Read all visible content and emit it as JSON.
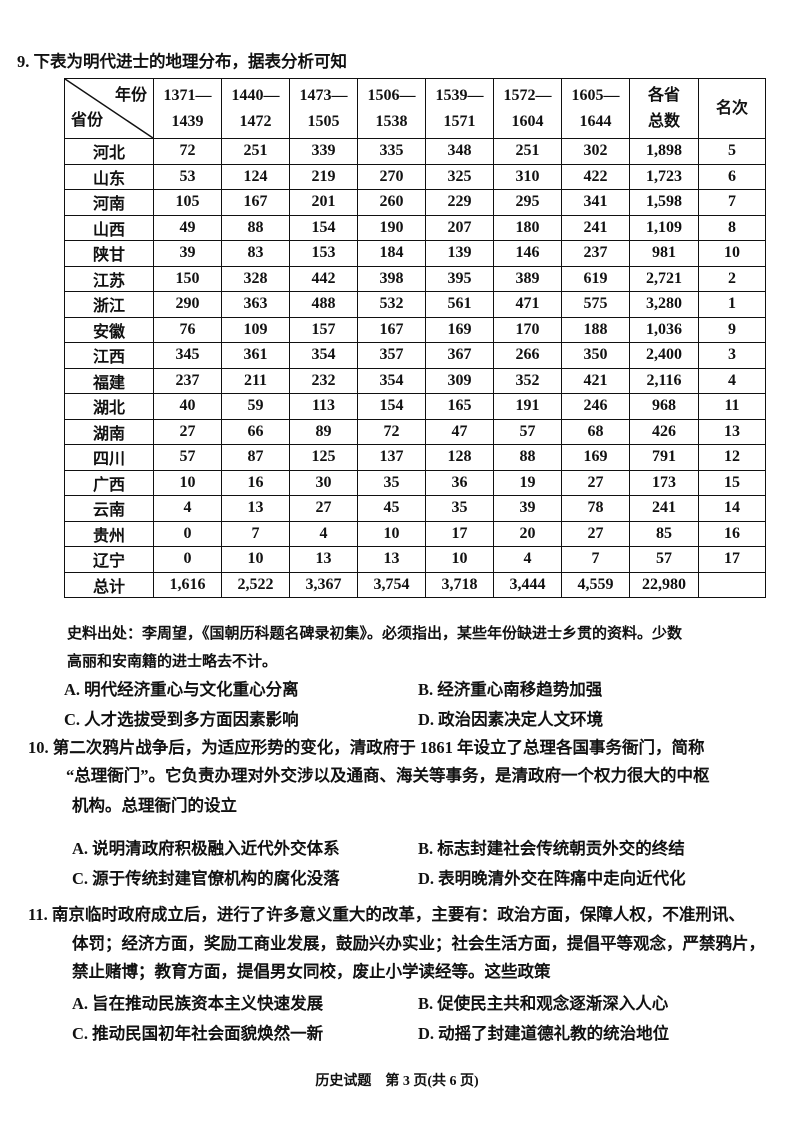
{
  "q9": {
    "stem": "9. 下表为明代进士的地理分布，据表分析可知",
    "table": {
      "corner_top": "年份",
      "corner_bottom": "省份",
      "columns": [
        [
          "1371—",
          "1439"
        ],
        [
          "1440—",
          "1472"
        ],
        [
          "1473—",
          "1505"
        ],
        [
          "1506—",
          "1538"
        ],
        [
          "1539—",
          "1571"
        ],
        [
          "1572—",
          "1604"
        ],
        [
          "1605—",
          "1644"
        ],
        [
          "各省",
          "总数"
        ],
        [
          "名次",
          ""
        ]
      ],
      "rows": [
        [
          "河北",
          "72",
          "251",
          "339",
          "335",
          "348",
          "251",
          "302",
          "1,898",
          "5"
        ],
        [
          "山东",
          "53",
          "124",
          "219",
          "270",
          "325",
          "310",
          "422",
          "1,723",
          "6"
        ],
        [
          "河南",
          "105",
          "167",
          "201",
          "260",
          "229",
          "295",
          "341",
          "1,598",
          "7"
        ],
        [
          "山西",
          "49",
          "88",
          "154",
          "190",
          "207",
          "180",
          "241",
          "1,109",
          "8"
        ],
        [
          "陕甘",
          "39",
          "83",
          "153",
          "184",
          "139",
          "146",
          "237",
          "981",
          "10"
        ],
        [
          "江苏",
          "150",
          "328",
          "442",
          "398",
          "395",
          "389",
          "619",
          "2,721",
          "2"
        ],
        [
          "浙江",
          "290",
          "363",
          "488",
          "532",
          "561",
          "471",
          "575",
          "3,280",
          "1"
        ],
        [
          "安徽",
          "76",
          "109",
          "157",
          "167",
          "169",
          "170",
          "188",
          "1,036",
          "9"
        ],
        [
          "江西",
          "345",
          "361",
          "354",
          "357",
          "367",
          "266",
          "350",
          "2,400",
          "3"
        ],
        [
          "福建",
          "237",
          "211",
          "232",
          "354",
          "309",
          "352",
          "421",
          "2,116",
          "4"
        ],
        [
          "湖北",
          "40",
          "59",
          "113",
          "154",
          "165",
          "191",
          "246",
          "968",
          "11"
        ],
        [
          "湖南",
          "27",
          "66",
          "89",
          "72",
          "47",
          "57",
          "68",
          "426",
          "13"
        ],
        [
          "四川",
          "57",
          "87",
          "125",
          "137",
          "128",
          "88",
          "169",
          "791",
          "12"
        ],
        [
          "广西",
          "10",
          "16",
          "30",
          "35",
          "36",
          "19",
          "27",
          "173",
          "15"
        ],
        [
          "云南",
          "4",
          "13",
          "27",
          "45",
          "35",
          "39",
          "78",
          "241",
          "14"
        ],
        [
          "贵州",
          "0",
          "7",
          "4",
          "10",
          "17",
          "20",
          "27",
          "85",
          "16"
        ],
        [
          "辽宁",
          "0",
          "10",
          "13",
          "13",
          "10",
          "4",
          "7",
          "57",
          "17"
        ],
        [
          "总计",
          "1,616",
          "2,522",
          "3,367",
          "3,754",
          "3,718",
          "3,444",
          "4,559",
          "22,980",
          ""
        ]
      ]
    },
    "note_1": "史料出处：李周望，《国朝历科题名碑录初集》。必须指出，某些年份缺进士乡贯的资料。少数",
    "note_2": "高丽和安南籍的进士略去不计。",
    "options": [
      "A. 明代经济重心与文化重心分离",
      "B. 经济重心南移趋势加强",
      "C. 人才选拔受到多方面因素影响",
      "D. 政治因素决定人文环境"
    ]
  },
  "q10": {
    "lines": [
      "10. 第二次鸦片战争后，为适应形势的变化，清政府于 1861 年设立了总理各国事务衙门，简称",
      "“总理衙门”。它负责办理对外交涉以及通商、海关等事务，是清政府一个权力很大的中枢",
      "机构。总理衙门的设立"
    ],
    "options": [
      "A. 说明清政府积极融入近代外交体系",
      "B. 标志封建社会传统朝贡外交的终结",
      "C. 源于传统封建官僚机构的腐化没落",
      "D. 表明晚清外交在阵痛中走向近代化"
    ]
  },
  "q11": {
    "lines": [
      "11. 南京临时政府成立后，进行了许多意义重大的改革，主要有：政治方面，保障人权，不准刑讯、",
      "体罚；经济方面，奖励工商业发展，鼓励兴办实业；社会生活方面，提倡平等观念，严禁鸦片，",
      "禁止赌博；教育方面，提倡男女同校，废止小学读经等。这些政策"
    ],
    "options": [
      "A. 旨在推动民族资本主义快速发展",
      "B. 促使民主共和观念逐渐深入人心",
      "C. 推动民国初年社会面貌焕然一新",
      "D. 动摇了封建道德礼教的统治地位"
    ]
  },
  "footer": "历史试题　第 3 页(共 6 页)"
}
